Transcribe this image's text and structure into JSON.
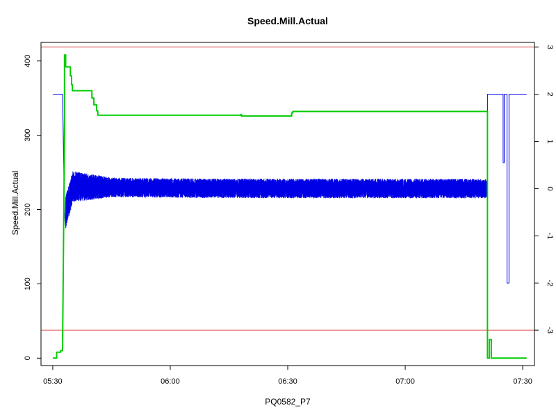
{
  "chart_data": {
    "type": "line",
    "title": "Speed.Mill.Actual",
    "xlabel": "PQ0582_P7",
    "ylabel": "Speed.Mill.Actual",
    "xlim": [
      "05:27",
      "07:33"
    ],
    "ylim": [
      -10,
      425
    ],
    "y2lim": [
      -3.75,
      3.1
    ],
    "x_ticks": [
      "05:30",
      "06:00",
      "06:30",
      "07:00",
      "07:30"
    ],
    "y_ticks": [
      0,
      100,
      200,
      300,
      400
    ],
    "y2_ticks": [
      -3,
      -2,
      -1,
      0,
      1,
      2,
      3
    ],
    "grid": false,
    "reference_lines": {
      "axis": "y2",
      "values": [
        3,
        -3
      ],
      "color": "#e05050"
    },
    "series": [
      {
        "axis": "y",
        "color": "#00cc00",
        "points": [
          [
            "05:30",
            0
          ],
          [
            "05:31",
            0
          ],
          [
            "05:31",
            8
          ],
          [
            "05:32",
            8
          ],
          [
            "05:32",
            10
          ],
          [
            "05:32.5",
            10
          ],
          [
            "05:33",
            300
          ],
          [
            "05:33",
            408
          ],
          [
            "05:33.3",
            408
          ],
          [
            "05:33.3",
            392
          ],
          [
            "05:34.5",
            392
          ],
          [
            "05:34.5",
            380
          ],
          [
            "05:34.8",
            380
          ],
          [
            "05:34.8",
            368
          ],
          [
            "05:35",
            368
          ],
          [
            "05:35",
            360
          ],
          [
            "05:40",
            360
          ],
          [
            "05:40",
            350
          ],
          [
            "05:40.5",
            350
          ],
          [
            "05:40.5",
            341
          ],
          [
            "05:41.2",
            341
          ],
          [
            "05:41.2",
            333
          ],
          [
            "05:41.5",
            333
          ],
          [
            "05:41.5",
            327
          ],
          [
            "06:18",
            327
          ],
          [
            "06:18",
            328
          ],
          [
            "06:18.2",
            328
          ],
          [
            "06:18.2",
            326
          ],
          [
            "06:31",
            326
          ],
          [
            "06:31",
            330
          ],
          [
            "06:31.3",
            330
          ],
          [
            "06:31.3",
            332
          ],
          [
            "07:21",
            332
          ],
          [
            "07:21",
            0
          ],
          [
            "07:21.5",
            0
          ],
          [
            "07:21.5",
            25
          ],
          [
            "07:22",
            25
          ],
          [
            "07:22",
            0
          ],
          [
            "07:31",
            0
          ]
        ]
      },
      {
        "axis": "y2",
        "color": "#0000e6",
        "points": [
          [
            "05:30",
            2
          ],
          [
            "05:32.5",
            2
          ],
          [
            "05:33",
            -0.5
          ],
          [
            "05:33.3",
            -0.9
          ],
          [
            "05:34",
            0.1
          ],
          [
            "05:35",
            0.1
          ],
          [
            "05:37",
            0.05
          ],
          [
            "05:40",
            0.1
          ],
          [
            "05:45",
            0.05
          ],
          [
            "06:00",
            0
          ],
          [
            "06:20",
            0
          ],
          [
            "06:40",
            0
          ],
          [
            "07:00",
            0
          ],
          [
            "07:21",
            0
          ],
          [
            "07:21",
            2
          ],
          [
            "07:25",
            2
          ],
          [
            "07:25",
            0.55
          ],
          [
            "07:25.3",
            0.55
          ],
          [
            "07:25.3",
            2
          ],
          [
            "07:26",
            2
          ],
          [
            "07:26",
            -2
          ],
          [
            "07:26.5",
            -2
          ],
          [
            "07:26.5",
            2
          ],
          [
            "07:31",
            2
          ]
        ],
        "noise": {
          "from": "05:33.3",
          "to": "07:21",
          "amplitude": 0.2,
          "peak_amplitude": 0.35,
          "samples_per_minute": 120
        }
      }
    ]
  }
}
